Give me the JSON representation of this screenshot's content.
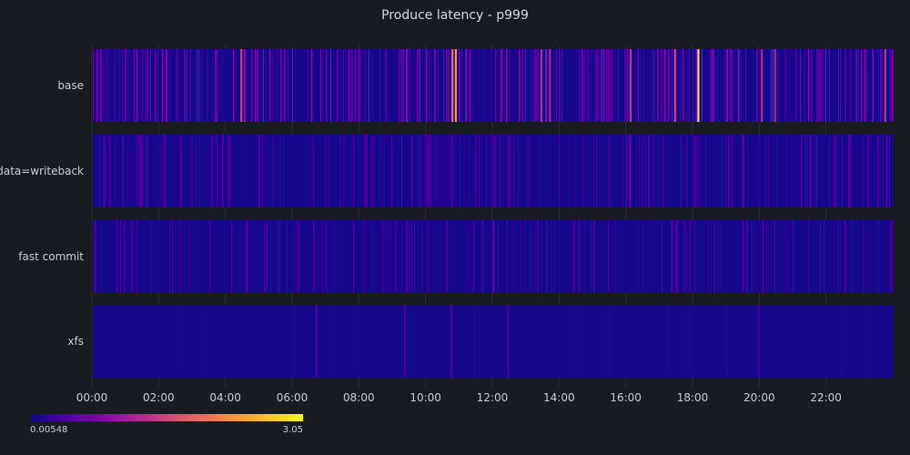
{
  "chart_data": {
    "type": "heatmap",
    "title": "Produce latency - p999",
    "rows": [
      "base",
      "data=writeback",
      "fast commit",
      "xfs"
    ],
    "x_ticks": [
      "00:00",
      "02:00",
      "04:00",
      "06:00",
      "08:00",
      "10:00",
      "12:00",
      "14:00",
      "16:00",
      "18:00",
      "20:00",
      "22:00"
    ],
    "x_range_hours": [
      0,
      24
    ],
    "color_scale": {
      "name": "plasma",
      "min": 0.00548,
      "max": 3.05,
      "min_label": "0.00548",
      "max_label": "3.05",
      "stops": [
        "#0d0887",
        "#5302a3",
        "#8b0aa5",
        "#b83289",
        "#db5c68",
        "#f48849",
        "#febc2a",
        "#f0f921"
      ]
    },
    "background_value": 0.06,
    "bands": [
      {
        "row": "base",
        "spikes": [
          {
            "t": 4.45,
            "v": 1.55
          },
          {
            "t": 10.78,
            "v": 2.2
          },
          {
            "t": 10.88,
            "v": 2.5
          },
          {
            "t": 13.45,
            "v": 1.35
          },
          {
            "t": 13.7,
            "v": 1.25
          },
          {
            "t": 16.12,
            "v": 1.45
          },
          {
            "t": 17.45,
            "v": 1.6
          },
          {
            "t": 18.15,
            "v": 3.05
          },
          {
            "t": 20.05,
            "v": 1.3
          },
          {
            "t": 20.45,
            "v": 1.2
          },
          {
            "t": 23.75,
            "v": 1.45
          }
        ],
        "noise_prob": 0.34,
        "noise_range": [
          0.15,
          0.95
        ]
      },
      {
        "row": "data=writeback",
        "spikes": [
          {
            "t": 16.1,
            "v": 0.6
          },
          {
            "t": 19.5,
            "v": 0.5
          }
        ],
        "noise_prob": 0.24,
        "noise_range": [
          0.12,
          0.5
        ]
      },
      {
        "row": "fast commit",
        "spikes": [
          {
            "t": 12.0,
            "v": 0.5
          },
          {
            "t": 17.5,
            "v": 0.45
          }
        ],
        "noise_prob": 0.2,
        "noise_range": [
          0.1,
          0.45
        ]
      },
      {
        "row": "xfs",
        "spikes": [
          {
            "t": 6.7,
            "v": 0.45
          },
          {
            "t": 9.35,
            "v": 0.4
          },
          {
            "t": 10.75,
            "v": 0.4
          },
          {
            "t": 12.45,
            "v": 0.35
          },
          {
            "t": 19.95,
            "v": 0.35
          }
        ],
        "noise_prob": 0.03,
        "noise_range": [
          0.08,
          0.25
        ]
      }
    ],
    "grid": true,
    "legend_placement": "bottom-left"
  }
}
